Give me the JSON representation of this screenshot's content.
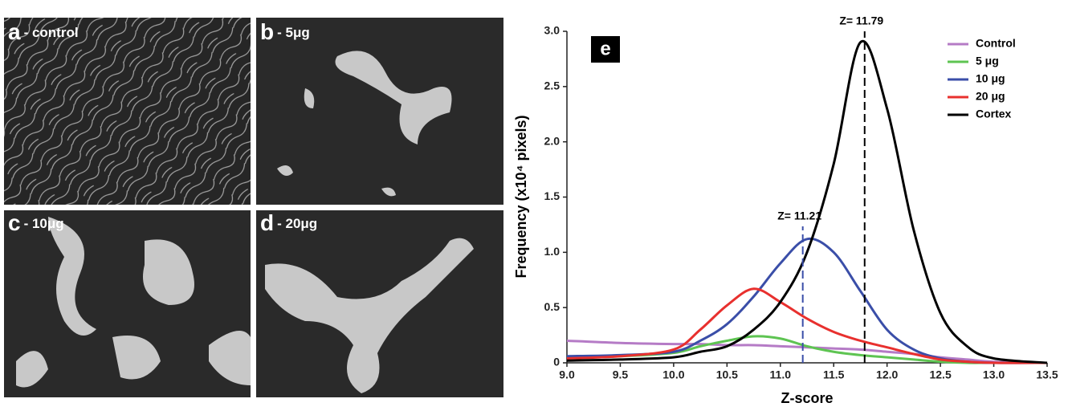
{
  "panels": [
    {
      "letter": "a",
      "caption": "- control"
    },
    {
      "letter": "b",
      "caption": "- 5μg"
    },
    {
      "letter": "c",
      "caption": "- 10μg"
    },
    {
      "letter": "d",
      "caption": "- 20μg"
    }
  ],
  "chart_data": {
    "type": "line",
    "panel_label": "e",
    "x_label": "Z-score",
    "y_label": "Frequency (x10⁴ pixels)",
    "x": [
      9.0,
      9.5,
      10.0,
      10.25,
      10.5,
      10.75,
      11.0,
      11.25,
      11.5,
      11.75,
      12.0,
      12.25,
      12.5,
      12.75,
      13.0,
      13.5
    ],
    "series": [
      {
        "name": "Control",
        "color": "#b57bc6",
        "values": [
          0.2,
          0.18,
          0.17,
          0.17,
          0.16,
          0.16,
          0.15,
          0.14,
          0.13,
          0.12,
          0.1,
          0.08,
          0.05,
          0.03,
          0.01,
          0
        ]
      },
      {
        "name": "5 μg",
        "color": "#5ec452",
        "values": [
          0.05,
          0.06,
          0.09,
          0.15,
          0.2,
          0.24,
          0.22,
          0.15,
          0.1,
          0.07,
          0.05,
          0.03,
          0.01,
          0,
          0,
          0
        ]
      },
      {
        "name": "10 μg",
        "color": "#3a4ea8",
        "values": [
          0.06,
          0.07,
          0.1,
          0.2,
          0.35,
          0.6,
          0.9,
          1.12,
          1.0,
          0.65,
          0.3,
          0.12,
          0.04,
          0.01,
          0,
          0
        ]
      },
      {
        "name": "20 μg",
        "color": "#e8302e",
        "values": [
          0.04,
          0.06,
          0.12,
          0.3,
          0.52,
          0.67,
          0.55,
          0.4,
          0.28,
          0.2,
          0.14,
          0.08,
          0.03,
          0.01,
          0,
          0
        ]
      },
      {
        "name": "Cortex",
        "color": "#000000",
        "values": [
          0.02,
          0.03,
          0.05,
          0.1,
          0.15,
          0.3,
          0.55,
          1.0,
          1.8,
          2.9,
          2.3,
          1.2,
          0.45,
          0.15,
          0.04,
          0
        ]
      }
    ],
    "annotations": [
      {
        "text": "Z= 11.79",
        "x": 11.79,
        "color": "#000000"
      },
      {
        "text": "Z= 11.21",
        "x": 11.21,
        "color": "#3a4ea8"
      }
    ],
    "xlim": [
      9.0,
      13.5
    ],
    "xticks": [
      {
        "value": 9,
        "label": "9.0"
      },
      9.5,
      {
        "value": 10,
        "label": "10.0"
      },
      10.5,
      {
        "value": 11,
        "label": "11.0"
      },
      11.5,
      {
        "value": 12,
        "label": "12.0"
      },
      12.5,
      {
        "value": 13,
        "label": "13.0"
      },
      13.5
    ],
    "ylim": [
      0,
      3.0
    ],
    "yticks": [
      0,
      0.5,
      {
        "value": 1,
        "label": "1.0"
      },
      1.5,
      {
        "value": 2,
        "label": "2.0"
      },
      2.5,
      {
        "value": 3,
        "label": "3.0"
      }
    ],
    "legend": "top-right"
  }
}
